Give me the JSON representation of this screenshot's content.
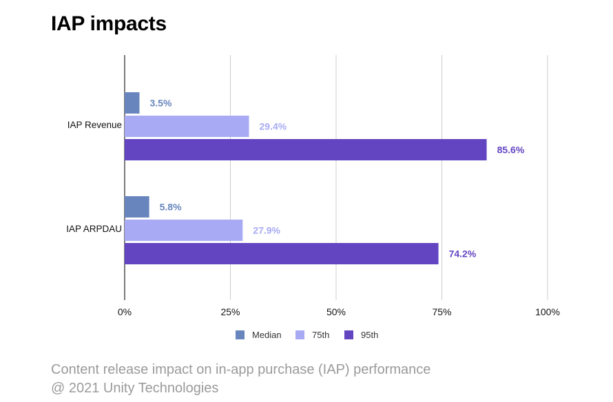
{
  "page": {
    "title": "IAP impacts",
    "caption_line1": "Content release impact on in-app purchase (IAP) performance",
    "caption_line2": "@ 2021 Unity Technologies"
  },
  "chart_data": {
    "type": "bar",
    "orientation": "horizontal",
    "title": "IAP impacts",
    "categories": [
      "IAP Revenue",
      "IAP ARPDAU"
    ],
    "series": [
      {
        "name": "Median",
        "values": [
          3.5,
          5.8
        ],
        "labels": [
          "3.5%",
          "5.8%"
        ],
        "color": "#6886bd"
      },
      {
        "name": "75th",
        "values": [
          29.4,
          27.9
        ],
        "labels": [
          "29.4%",
          "27.9%"
        ],
        "color": "#a8abf3"
      },
      {
        "name": "95th",
        "values": [
          85.6,
          74.2
        ],
        "labels": [
          "85.6%",
          "74.2%"
        ],
        "color": "#6345c2"
      }
    ],
    "xlim": [
      0,
      100
    ],
    "xticks": [
      0,
      25,
      50,
      75,
      100
    ],
    "xtick_labels": [
      "0%",
      "25%",
      "50%",
      "75%",
      "100%"
    ],
    "grid": "vertical",
    "legend_position": "bottom"
  }
}
